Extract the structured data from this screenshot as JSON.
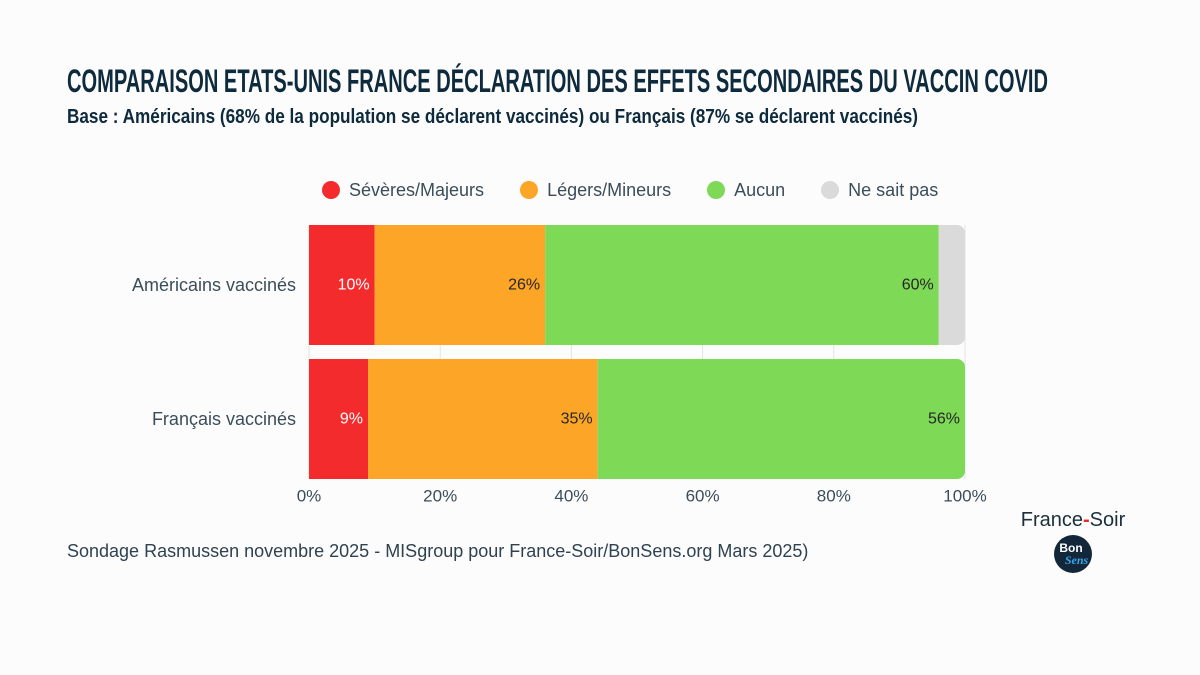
{
  "chart_data": {
    "type": "bar",
    "orientation": "horizontal",
    "stacked": true,
    "title": "COMPARAISON ETATS-UNIS FRANCE DÉCLARATION DES EFFETS SECONDAIRES DU VACCIN COVID",
    "subtitle": "Base : Américains (68% de la population se déclarent vaccinés) ou Français (87% se déclarent vaccinés)",
    "categories": [
      "Américains vaccinés",
      "Français vaccinés"
    ],
    "series": [
      {
        "name": "Sévères/Majeurs",
        "values": [
          10,
          9
        ],
        "data_labels": [
          "10%",
          "9%"
        ],
        "color": "#f42b2c",
        "label_color": "#ffffff"
      },
      {
        "name": "Légers/Mineurs",
        "values": [
          26,
          35
        ],
        "data_labels": [
          "26%",
          "35%"
        ],
        "color": "#fca526",
        "label_color": "#262626"
      },
      {
        "name": "Aucun",
        "values": [
          60,
          56
        ],
        "data_labels": [
          "60%",
          "56%"
        ],
        "color": "#7ed957",
        "label_color": "#262626"
      },
      {
        "name": "Ne sait pas",
        "values": [
          4,
          0
        ],
        "color": "#dadada"
      }
    ],
    "xlim": [
      0,
      100
    ],
    "xtick_values": [
      0,
      20,
      40,
      60,
      80,
      100
    ],
    "xtick_labels": [
      "0%",
      "20%",
      "40%",
      "60%",
      "80%",
      "100%"
    ],
    "grid": true,
    "legend": "top",
    "source": "Sondage Rasmussen novembre 2025 - MISgroup pour France-Soir/BonSens.org Mars 2025)"
  },
  "logo": {
    "brand_name_part1": "France",
    "brand_name_separator": "-",
    "brand_name_part2": "Soir",
    "badge_line1": "Bon",
    "badge_line2": "Sens"
  },
  "theme": {
    "background": "#fcfcfc",
    "heading": "#0e2a3d",
    "text": "#3b4d59",
    "source": "#2f4251",
    "grid": "#e3e3e3",
    "logo_text": "#1c2f3e",
    "logo_separator": "#e52a2c",
    "badge_background": "#12283a",
    "badge_accent": "#3aa3ea"
  }
}
